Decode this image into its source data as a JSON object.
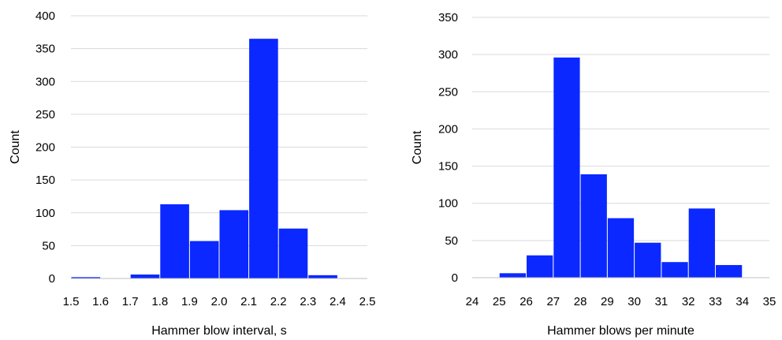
{
  "colors": {
    "bar": "#0a28ff",
    "grid": "#d9d9d9",
    "axis": "#bfbfbf"
  },
  "chart_data": [
    {
      "type": "bar",
      "xlabel": "Hammer blow interval, s",
      "ylabel": "Count",
      "x_ticks": [
        "1.5",
        "1.6",
        "1.7",
        "1.8",
        "1.9",
        "2.0",
        "2.1",
        "2.2",
        "2.3",
        "2.4",
        "2.5"
      ],
      "y_ticks": [
        "0",
        "50",
        "100",
        "150",
        "200",
        "250",
        "300",
        "350",
        "400"
      ],
      "xlim": [
        1.5,
        2.5
      ],
      "ylim": [
        0,
        400
      ],
      "bins": [
        {
          "start": 1.5,
          "end": 1.6,
          "value": 2
        },
        {
          "start": 1.6,
          "end": 1.7,
          "value": 0
        },
        {
          "start": 1.7,
          "end": 1.8,
          "value": 6
        },
        {
          "start": 1.8,
          "end": 1.9,
          "value": 113
        },
        {
          "start": 1.9,
          "end": 2.0,
          "value": 57
        },
        {
          "start": 2.0,
          "end": 2.1,
          "value": 104
        },
        {
          "start": 2.1,
          "end": 2.2,
          "value": 365
        },
        {
          "start": 2.2,
          "end": 2.3,
          "value": 76
        },
        {
          "start": 2.3,
          "end": 2.4,
          "value": 5
        },
        {
          "start": 2.4,
          "end": 2.5,
          "value": 0
        }
      ],
      "grid": true
    },
    {
      "type": "bar",
      "xlabel": "Hammer blows per minute",
      "ylabel": "Count",
      "x_ticks": [
        "24",
        "25",
        "26",
        "27",
        "28",
        "29",
        "30",
        "31",
        "32",
        "33",
        "34",
        "35"
      ],
      "y_ticks": [
        "0",
        "50",
        "100",
        "150",
        "200",
        "250",
        "300",
        "350"
      ],
      "xlim": [
        24,
        35
      ],
      "ylim": [
        0,
        350
      ],
      "bins": [
        {
          "start": 24,
          "end": 25,
          "value": 0
        },
        {
          "start": 25,
          "end": 26,
          "value": 6
        },
        {
          "start": 26,
          "end": 27,
          "value": 30
        },
        {
          "start": 27,
          "end": 28,
          "value": 296
        },
        {
          "start": 28,
          "end": 29,
          "value": 139
        },
        {
          "start": 29,
          "end": 30,
          "value": 80
        },
        {
          "start": 30,
          "end": 31,
          "value": 47
        },
        {
          "start": 31,
          "end": 32,
          "value": 21
        },
        {
          "start": 32,
          "end": 33,
          "value": 93
        },
        {
          "start": 33,
          "end": 34,
          "value": 17
        },
        {
          "start": 34,
          "end": 35,
          "value": 0
        }
      ],
      "grid": true
    }
  ]
}
